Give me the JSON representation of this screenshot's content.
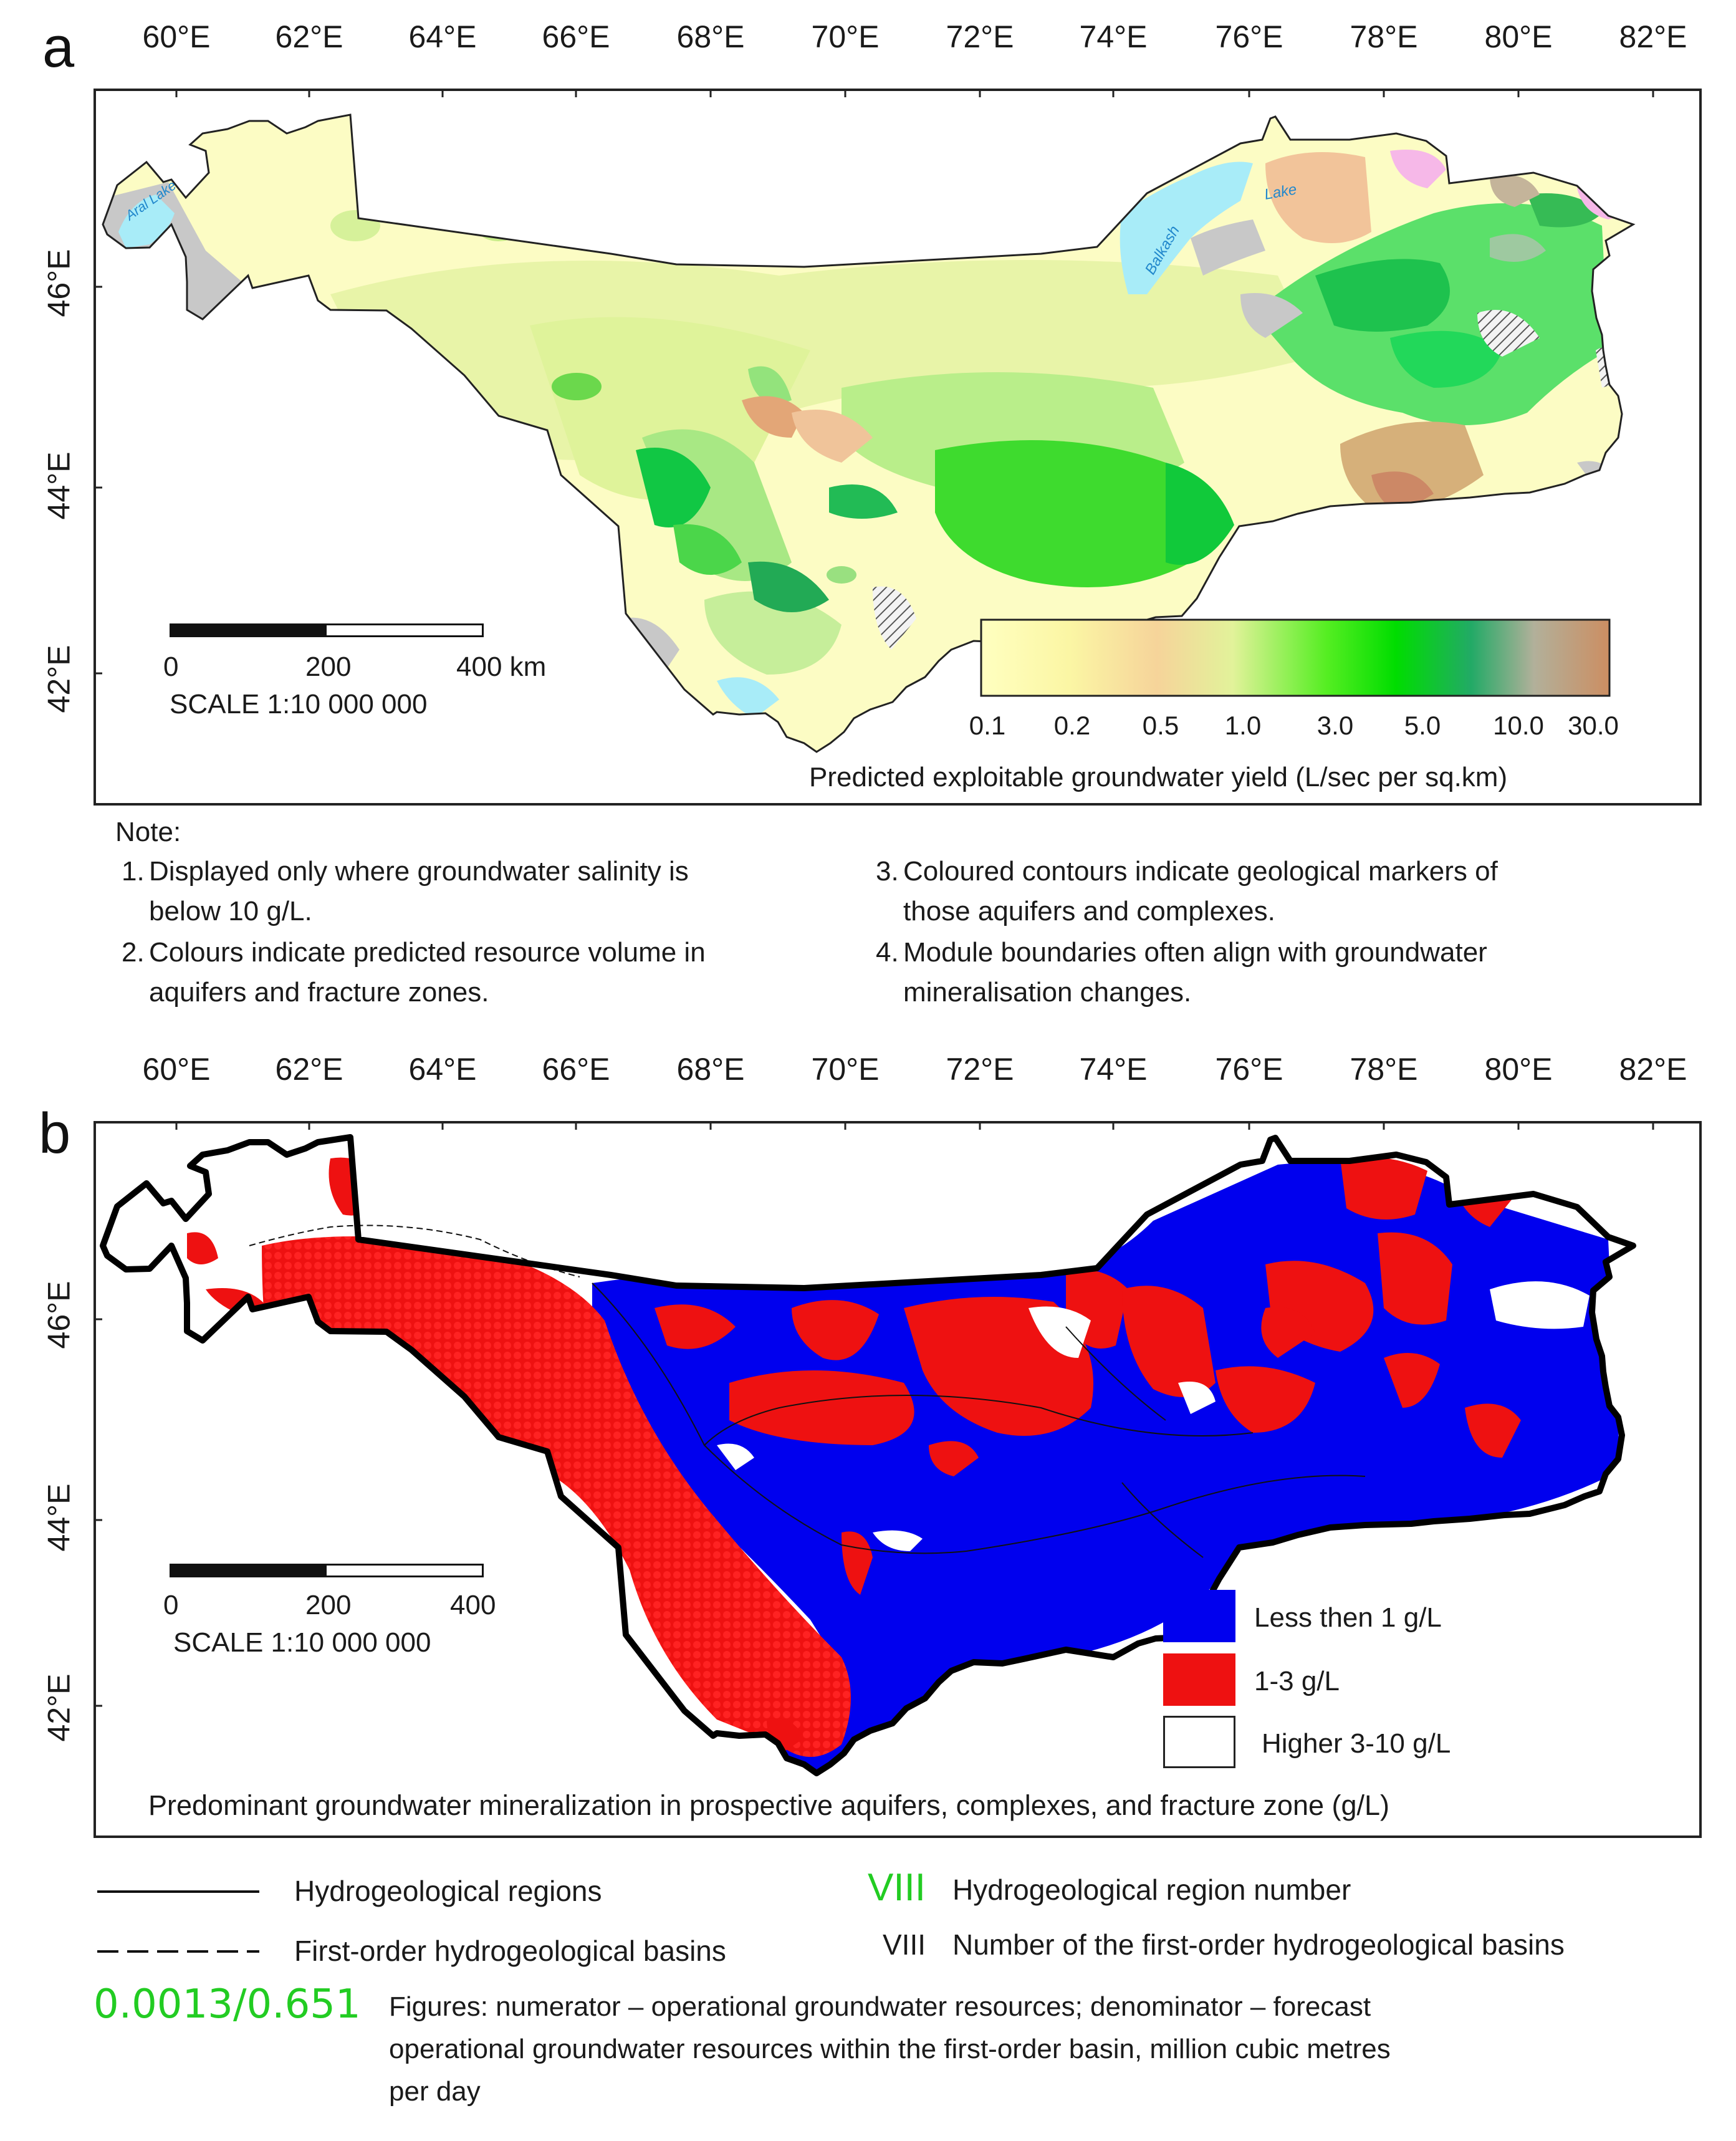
{
  "colors": {
    "frame": "#222222",
    "blue": "#0000ee",
    "red": "#ee1111",
    "green_text": "#22cc22",
    "lake": "#aaeeff",
    "gray": "#c4c4c4"
  },
  "axes": {
    "lon_labels": [
      "60°E",
      "62°E",
      "64°E",
      "66°E",
      "68°E",
      "70°E",
      "72°E",
      "74°E",
      "76°E",
      "78°E",
      "80°E",
      "82°E"
    ],
    "lat_labels": [
      "46°E",
      "44°E",
      "42°E"
    ]
  },
  "panel_a": {
    "letter": "a",
    "lake_aral": "Aral Lake",
    "lake_balkash": "Balkash",
    "lake_word": "Lake",
    "scale_ticks": [
      "0",
      "200",
      "400 km"
    ],
    "scale_text": "SCALE 1:10 000 000",
    "colorbar_ticks": [
      "0.1",
      "0.2",
      "0.5",
      "1.0",
      "3.0",
      "5.0",
      "10.0",
      "30.0"
    ],
    "colorbar_title": "Predicted exploitable groundwater yield (L/sec per sq.km)",
    "colorbar_stops": [
      "#ffffc0",
      "#fbf6a4",
      "#f6d49a",
      "#e2f29a",
      "#55ee22",
      "#00dd00",
      "#22aa66",
      "#b2b09a",
      "#cc8e62"
    ]
  },
  "notes": {
    "title": "Note:",
    "left": [
      {
        "num": "1.",
        "line1": "Displayed only where groundwater salinity is",
        "line2": "below 10 g/L."
      },
      {
        "num": "2.",
        "line1": "Colours indicate predicted resource volume in",
        "line2": "aquifers and fracture zones."
      }
    ],
    "right": [
      {
        "num": "3.",
        "line1": "Coloured contours indicate geological markers of",
        "line2": "those aquifers and complexes."
      },
      {
        "num": "4.",
        "line1": "Module boundaries often align with groundwater",
        "line2": "mineralisation changes."
      }
    ]
  },
  "panel_b": {
    "letter": "b",
    "scale_ticks": [
      "0",
      "200",
      "400"
    ],
    "scale_text": "SCALE 1:10 000 000",
    "legend": [
      {
        "label": "Less then 1 g/L",
        "color": "#0000ee"
      },
      {
        "label": "1-3 g/L",
        "color": "#ee1111"
      },
      {
        "label": "Higher 3-10 g/L",
        "color": "#ffffff"
      }
    ],
    "title": "Predominant groundwater mineralization in prospective aquifers, complexes, and fracture zone (g/L)"
  },
  "bottom_legend": {
    "regions": "Hydrogeological regions",
    "basins": "First-order hydrogeological basins",
    "region_num_sym": "VIII",
    "region_num_text": "Hydrogeological region number",
    "basin_num_sym": "VIII",
    "basin_num_text": "Number of the first-order hydrogeological basins",
    "fraction": "0.0013/0.651",
    "fraction_desc": [
      "Figures: numerator – operational groundwater resources; denominator – forecast",
      "operational groundwater resources within the first-order basin, million cubic metres",
      "per day"
    ]
  }
}
